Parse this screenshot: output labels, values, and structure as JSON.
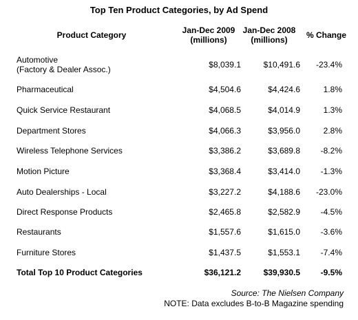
{
  "title": "Top Ten Product Categories, by Ad Spend",
  "headers": {
    "category": "Product Category",
    "col1_line1": "Jan-Dec 2009",
    "col1_line2": "(millions)",
    "col2_line1": "Jan-Dec 2008",
    "col2_line2": "(millions)",
    "change": "% Change"
  },
  "rows": [
    {
      "category": "Automotive",
      "category_line2": "(Factory & Dealer Assoc.)",
      "v2009": "$8,039.1",
      "v2008": "$10,491.6",
      "change": "-23.4%"
    },
    {
      "category": "Pharmaceutical",
      "v2009": "$4,504.6",
      "v2008": "$4,424.6",
      "change": "1.8%"
    },
    {
      "category": "Quick Service Restaurant",
      "v2009": "$4,068.5",
      "v2008": "$4,014.9",
      "change": "1.3%"
    },
    {
      "category": "Department Stores",
      "v2009": "$4,066.3",
      "v2008": "$3,956.0",
      "change": "2.8%"
    },
    {
      "category": "Wireless Telephone Services",
      "v2009": "$3,386.2",
      "v2008": "$3,689.8",
      "change": "-8.2%"
    },
    {
      "category": "Motion Picture",
      "v2009": "$3,368.4",
      "v2008": "$3,414.0",
      "change": "-1.3%"
    },
    {
      "category": "Auto Dealerships - Local",
      "v2009": "$3,227.2",
      "v2008": "$4,188.6",
      "change": "-23.0%"
    },
    {
      "category": "Direct Response Products",
      "v2009": "$2,465.8",
      "v2008": "$2,582.9",
      "change": "-4.5%"
    },
    {
      "category": "Restaurants",
      "v2009": "$1,557.6",
      "v2008": "$1,615.0",
      "change": "-3.6%"
    },
    {
      "category": "Furniture Stores",
      "v2009": "$1,437.5",
      "v2008": "$1,553.1",
      "change": "-7.4%"
    }
  ],
  "total": {
    "category": "Total Top 10 Product Categories",
    "v2009": "$36,121.2",
    "v2008": "$39,930.5",
    "change": "-9.5%"
  },
  "source": "Source: The Nielsen Company",
  "note": "NOTE: Data excludes B-to-B Magazine spending",
  "chart_data": {
    "type": "table",
    "title": "Top Ten Product Categories, by Ad Spend",
    "columns": [
      "Product Category",
      "Jan-Dec 2009 (millions)",
      "Jan-Dec 2008 (millions)",
      "% Change"
    ],
    "rows": [
      [
        "Automotive (Factory & Dealer Assoc.)",
        8039.1,
        10491.6,
        -23.4
      ],
      [
        "Pharmaceutical",
        4504.6,
        4424.6,
        1.8
      ],
      [
        "Quick Service Restaurant",
        4068.5,
        4014.9,
        1.3
      ],
      [
        "Department Stores",
        4066.3,
        3956.0,
        2.8
      ],
      [
        "Wireless Telephone Services",
        3386.2,
        3689.8,
        -8.2
      ],
      [
        "Motion Picture",
        3368.4,
        3414.0,
        -1.3
      ],
      [
        "Auto Dealerships - Local",
        3227.2,
        4188.6,
        -23.0
      ],
      [
        "Direct Response Products",
        2465.8,
        2582.9,
        -4.5
      ],
      [
        "Restaurants",
        1557.6,
        1615.0,
        -3.6
      ],
      [
        "Furniture Stores",
        1437.5,
        1553.1,
        -7.4
      ]
    ],
    "total": [
      "Total Top 10 Product Categories",
      36121.2,
      39930.5,
      -9.5
    ]
  }
}
